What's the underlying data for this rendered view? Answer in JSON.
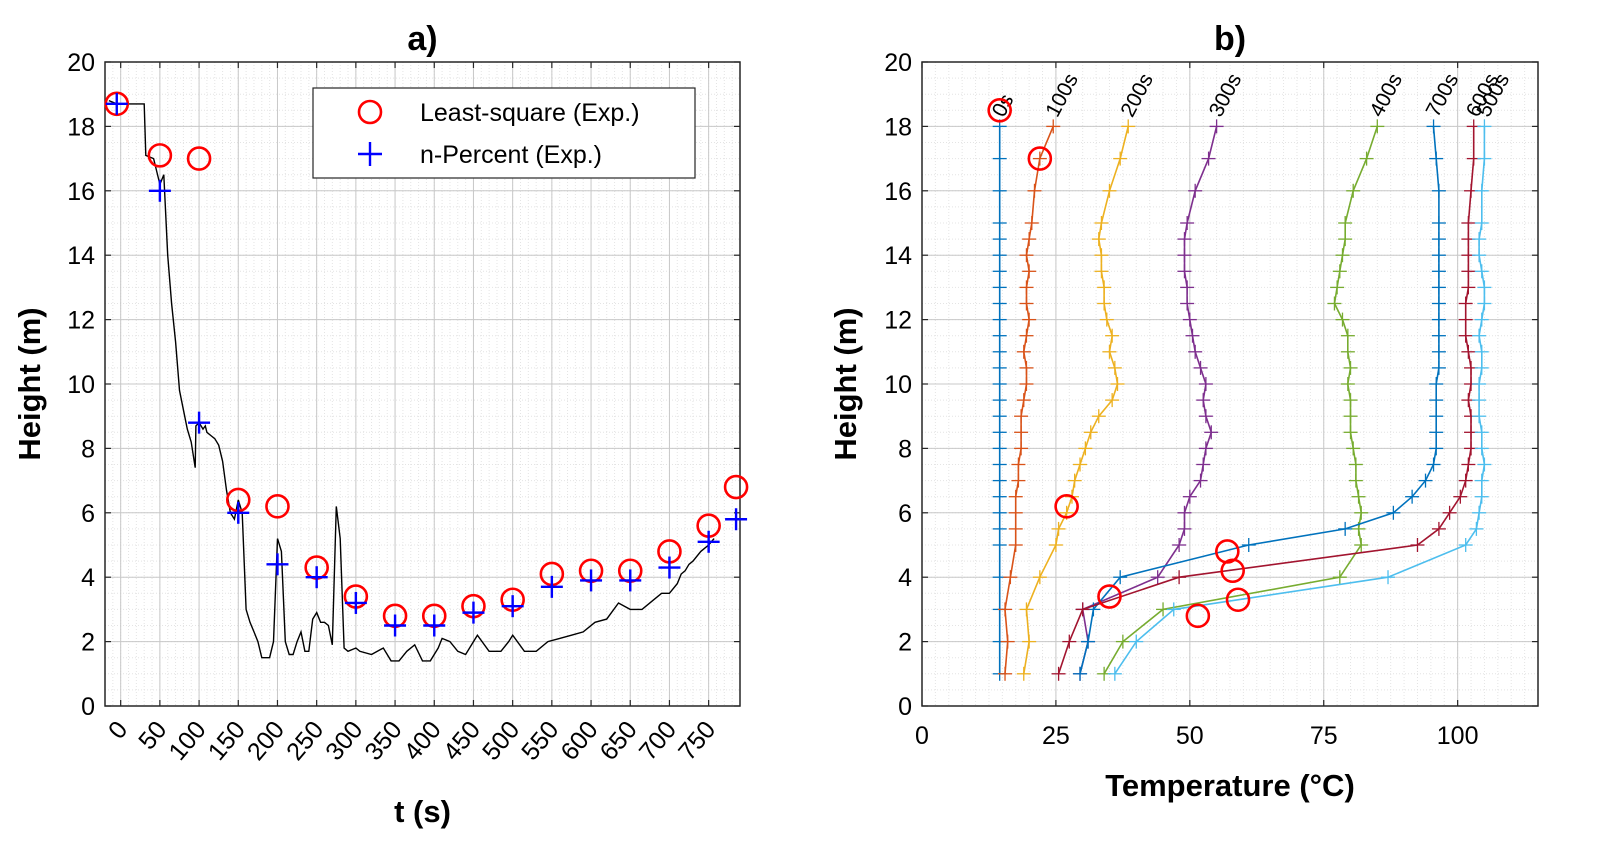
{
  "chart_data": [
    {
      "type": "line",
      "title": "a)",
      "xlabel": "t (s)",
      "ylabel": "Height (m)",
      "xlim": [
        -20,
        790
      ],
      "ylim": [
        0,
        20
      ],
      "xticks": [
        0,
        50,
        100,
        150,
        200,
        250,
        300,
        350,
        400,
        450,
        500,
        550,
        600,
        650,
        700,
        750
      ],
      "yticks": [
        0,
        2,
        4,
        6,
        8,
        10,
        12,
        14,
        16,
        18,
        20
      ],
      "grid": true,
      "legend": "top-right",
      "legend_entries": [
        "Least-square (Exp.)",
        "n-Percent (Exp.)"
      ],
      "series": [
        {
          "color": "#000000",
          "style": "line",
          "x": [
            -15,
            -5,
            0,
            30,
            32,
            42,
            50,
            55,
            60,
            65,
            70,
            75,
            80,
            85,
            90,
            95,
            96,
            100,
            105,
            108,
            110,
            115,
            120,
            125,
            130,
            135,
            140,
            145,
            150,
            155,
            160,
            165,
            170,
            175,
            180,
            190,
            195,
            200,
            205,
            210,
            215,
            220,
            225,
            230,
            235,
            240,
            245,
            250,
            255,
            260,
            265,
            270,
            275,
            280,
            285,
            290,
            300,
            305,
            320,
            335,
            345,
            355,
            365,
            375,
            385,
            395,
            405,
            410,
            420,
            430,
            440,
            455,
            470,
            485,
            495,
            500,
            515,
            530,
            545,
            560,
            575,
            590,
            605,
            620,
            635,
            650,
            665,
            680,
            690,
            700,
            710,
            715,
            720,
            725,
            730,
            740,
            750,
            757
          ],
          "y": [
            18.8,
            18.7,
            18.7,
            18.7,
            17.1,
            17.0,
            16.2,
            16.5,
            14.0,
            12.5,
            11.3,
            9.8,
            9.2,
            8.6,
            8.2,
            7.4,
            8.7,
            8.8,
            8.6,
            8.7,
            8.5,
            8.4,
            8.3,
            8.1,
            7.6,
            6.7,
            6.0,
            5.8,
            6.4,
            6.0,
            3.0,
            2.6,
            2.3,
            2.0,
            1.5,
            1.5,
            2.0,
            5.2,
            4.8,
            2.0,
            1.6,
            1.6,
            2.0,
            2.3,
            1.7,
            1.7,
            2.7,
            2.9,
            2.6,
            2.6,
            2.5,
            1.9,
            6.2,
            5.2,
            1.8,
            1.7,
            1.8,
            1.7,
            1.6,
            1.8,
            1.4,
            1.4,
            1.7,
            1.9,
            1.4,
            1.4,
            1.8,
            2.1,
            2.0,
            1.7,
            1.6,
            2.2,
            1.7,
            1.7,
            2.0,
            2.2,
            1.7,
            1.7,
            2.0,
            2.1,
            2.2,
            2.3,
            2.6,
            2.7,
            3.2,
            3.0,
            3.0,
            3.3,
            3.5,
            3.5,
            3.8,
            4.1,
            4.2,
            4.4,
            4.5,
            4.8,
            5.0,
            5.2
          ]
        },
        {
          "name": "Least-square (Exp.)",
          "color": "#ff0000",
          "style": "circle",
          "x": [
            -5,
            50,
            100,
            150,
            200,
            250,
            300,
            350,
            400,
            450,
            500,
            550,
            600,
            650,
            700,
            750,
            785
          ],
          "y": [
            18.7,
            17.1,
            17.0,
            6.4,
            6.2,
            4.3,
            3.4,
            2.8,
            2.8,
            3.1,
            3.3,
            4.1,
            4.2,
            4.2,
            4.8,
            5.6,
            6.8
          ]
        },
        {
          "name": "n-Percent (Exp.)",
          "color": "#0000ff",
          "style": "plus",
          "x": [
            -5,
            50,
            100,
            150,
            200,
            250,
            300,
            350,
            400,
            450,
            500,
            550,
            600,
            650,
            700,
            750,
            785
          ],
          "y": [
            18.7,
            16.0,
            8.8,
            6.0,
            4.4,
            4.0,
            3.2,
            2.5,
            2.5,
            2.9,
            3.1,
            3.7,
            3.9,
            3.9,
            4.3,
            5.1,
            5.8
          ]
        }
      ]
    },
    {
      "type": "line",
      "title": "b)",
      "xlabel": "Temperature (°C)",
      "ylabel": "Height (m)",
      "xlim": [
        0,
        115
      ],
      "ylim": [
        0,
        20
      ],
      "xticks": [
        0,
        25,
        50,
        75,
        100
      ],
      "yticks": [
        0,
        2,
        4,
        6,
        8,
        10,
        12,
        14,
        16,
        18,
        20
      ],
      "grid": true,
      "heights": [
        1,
        2,
        3,
        4,
        5,
        5.5,
        6,
        6.5,
        7,
        7.5,
        8,
        8.5,
        9,
        9.5,
        10,
        10.5,
        11,
        11.5,
        12,
        12.5,
        13,
        13.5,
        14,
        14.5,
        15,
        16,
        17,
        18
      ],
      "series": [
        {
          "label": "0s",
          "color": "#0072bd",
          "temps": [
            14.5,
            14.5,
            14.5,
            14.5,
            14.5,
            14.5,
            14.5,
            14.5,
            14.5,
            14.5,
            14.5,
            14.5,
            14.5,
            14.5,
            14.5,
            14.5,
            14.5,
            14.5,
            14.5,
            14.5,
            14.5,
            14.5,
            14.5,
            14.5,
            14.5,
            14.5,
            14.5,
            14.5
          ]
        },
        {
          "label": "100s",
          "color": "#d95319",
          "temps": [
            15.5,
            16,
            15.5,
            16.5,
            17.5,
            17.5,
            17.5,
            17.5,
            18,
            18,
            18.5,
            18.5,
            18.5,
            19,
            19.5,
            19.5,
            19,
            19.5,
            20,
            19.5,
            19.5,
            20,
            19.5,
            20,
            20.5,
            21,
            22,
            24.5
          ]
        },
        {
          "label": "200s",
          "color": "#edb120",
          "temps": [
            19,
            20,
            19.5,
            22,
            25,
            25.5,
            27,
            28,
            28.5,
            29.5,
            30.5,
            31.5,
            33,
            35.5,
            36.5,
            36,
            35,
            35.5,
            34.5,
            34,
            34,
            33.5,
            33.5,
            33,
            33.5,
            35,
            37,
            38.5
          ]
        },
        {
          "label": "300s",
          "color": "#7e2f8e",
          "temps": [
            29.5,
            31,
            30,
            44,
            48,
            49,
            49,
            50,
            52,
            52.5,
            53,
            54,
            53,
            52.5,
            53,
            52,
            51,
            50.5,
            50,
            49.5,
            49.5,
            49,
            49,
            49,
            49.5,
            51,
            53.5,
            55
          ]
        },
        {
          "label": "400s",
          "color": "#77ac30",
          "temps": [
            34,
            37.5,
            45,
            78,
            82,
            81.5,
            82,
            81.5,
            81,
            81,
            80.5,
            80,
            80,
            80,
            79.5,
            80,
            79.5,
            79.5,
            78.5,
            77,
            77.5,
            78,
            78.5,
            79,
            79,
            80.5,
            83,
            85
          ]
        },
        {
          "label": "700s",
          "color": "#0072bd",
          "temps": [
            29.5,
            31,
            32,
            37,
            61,
            79,
            88,
            91.5,
            94,
            95.5,
            96,
            96,
            96,
            96,
            96,
            96.5,
            96.5,
            96.5,
            96.5,
            96.5,
            96.5,
            96.5,
            96.5,
            96.5,
            96.5,
            96.5,
            96,
            95.5
          ]
        },
        {
          "label": "600s",
          "color": "#a2142f",
          "temps": [
            25.5,
            27.5,
            30,
            48,
            92.5,
            96.5,
            98.5,
            100.5,
            101.5,
            102,
            102.5,
            102.5,
            102.5,
            102,
            102.5,
            102.5,
            102,
            101.5,
            101.5,
            101.5,
            102,
            102,
            102,
            102,
            102,
            102.5,
            103,
            103
          ]
        },
        {
          "label": "500s",
          "color": "#4dbeee",
          "temps": [
            36,
            40,
            47,
            87,
            101.5,
            103.5,
            104,
            104.5,
            104.5,
            105,
            104.5,
            104.5,
            104,
            104,
            104,
            104.5,
            104.5,
            104,
            104.5,
            105,
            105,
            104.5,
            104,
            104,
            104.5,
            104.5,
            105,
            105
          ]
        }
      ],
      "least_square_points": {
        "color": "#ff0000",
        "x": [
          14.5,
          22,
          27,
          35,
          57,
          58,
          59,
          51.5
        ],
        "y": [
          18.5,
          17,
          6.2,
          3.4,
          4.8,
          4.2,
          3.3,
          2.8
        ]
      }
    }
  ]
}
